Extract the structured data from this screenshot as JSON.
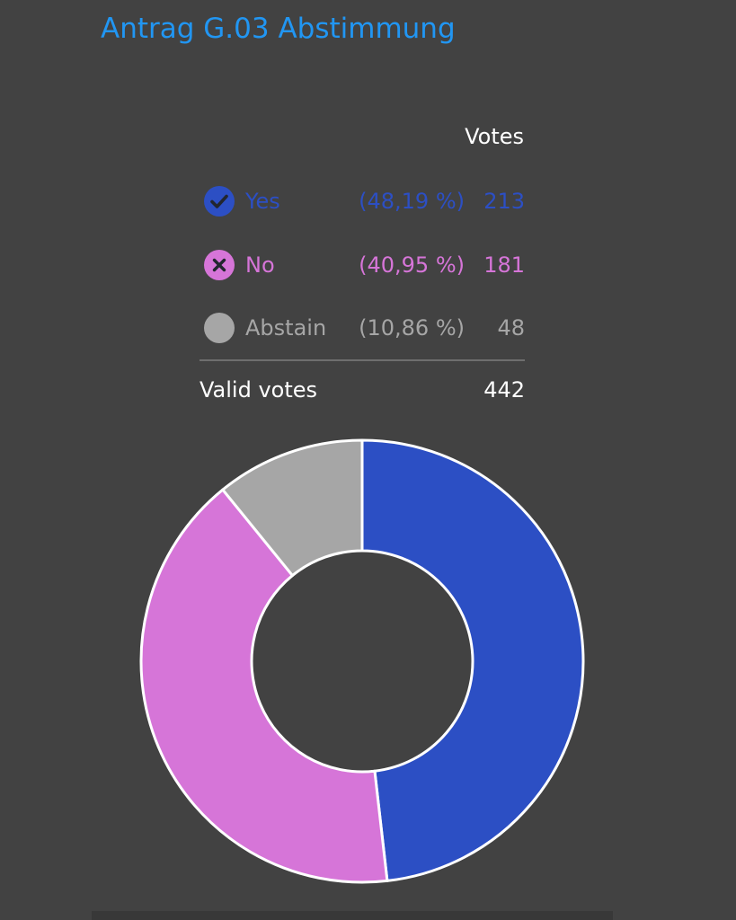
{
  "title": "Antrag G.03 Abstimmung",
  "votes_header": "Votes",
  "rows": [
    {
      "label": "Yes",
      "percent": "(48,19 %)",
      "count": "213",
      "value": 213,
      "color": "#2c4fc4",
      "icon": "check-circle-icon"
    },
    {
      "label": "No",
      "percent": "(40,95 %)",
      "count": "181",
      "value": 181,
      "color": "#d675d8",
      "icon": "x-circle-icon"
    },
    {
      "label": "Abstain",
      "percent": "(10,86 %)",
      "count": "48",
      "value": 48,
      "color": "#a6a6a6",
      "icon": "abstain-circle-icon"
    }
  ],
  "total": {
    "label": "Valid votes",
    "value": "442"
  },
  "chart_data": {
    "type": "pie",
    "categories": [
      "Yes",
      "No",
      "Abstain"
    ],
    "values": [
      213,
      181,
      48
    ],
    "colors": [
      "#2c4fc4",
      "#d675d8",
      "#a6a6a6"
    ],
    "donut": true
  }
}
